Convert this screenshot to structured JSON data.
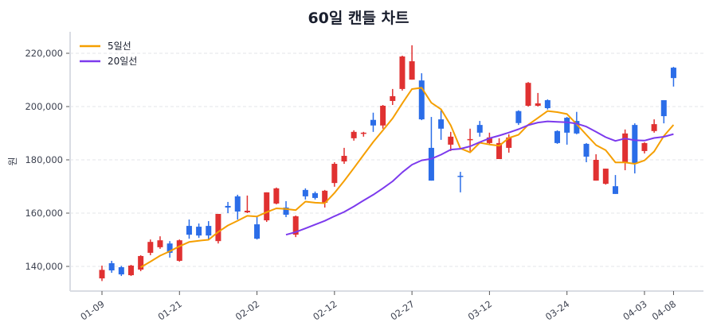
{
  "chart_data": {
    "type": "candlestick",
    "title": "60일 캔들 차트",
    "xlabel": "",
    "ylabel": "원",
    "ylim": [
      131000,
      228000
    ],
    "grid": true,
    "legend_position": "upper-left",
    "y_ticks": [
      140000,
      160000,
      180000,
      200000,
      220000
    ],
    "y_tick_labels": [
      "140,000",
      "160,000",
      "180,000",
      "200,000",
      "220,000"
    ],
    "x_ticks": [
      {
        "index": 0,
        "label": "01-09"
      },
      {
        "index": 8,
        "label": "01-21"
      },
      {
        "index": 16,
        "label": "02-02"
      },
      {
        "index": 24,
        "label": "02-12"
      },
      {
        "index": 32,
        "label": "02-27"
      },
      {
        "index": 40,
        "label": "03-12"
      },
      {
        "index": 48,
        "label": "03-24"
      },
      {
        "index": 56,
        "label": "04-03"
      },
      {
        "index": 59,
        "label": "04-08"
      }
    ],
    "colors": {
      "up": "#e03131",
      "down": "#2b6de8",
      "ma5": "#f59f00",
      "ma20": "#7c3aed",
      "grid": "#e3e5ea",
      "axis": "#d9dce3"
    },
    "legend": [
      {
        "name": "5일선",
        "color": "#f59f00",
        "window": 5
      },
      {
        "name": "20일선",
        "color": "#7c3aed",
        "window": 20
      }
    ],
    "ohlc": [
      [
        135500,
        140300,
        134500,
        138700
      ],
      [
        141200,
        142100,
        137600,
        138500
      ],
      [
        139700,
        140200,
        136400,
        137000
      ],
      [
        136700,
        140600,
        136400,
        140300
      ],
      [
        138800,
        144200,
        138200,
        143900
      ],
      [
        145100,
        150100,
        144200,
        149200
      ],
      [
        147200,
        151300,
        146600,
        149800
      ],
      [
        148600,
        149500,
        143300,
        145100
      ],
      [
        142100,
        150100,
        141800,
        149800
      ],
      [
        155200,
        157600,
        150400,
        151900
      ],
      [
        154900,
        156100,
        150700,
        151600
      ],
      [
        155200,
        157000,
        150100,
        151600
      ],
      [
        149500,
        159700,
        148600,
        159700
      ],
      [
        162700,
        164200,
        160000,
        162100
      ],
      [
        166300,
        166900,
        157600,
        160600
      ],
      [
        160300,
        166600,
        160000,
        160900
      ],
      [
        155800,
        158800,
        150100,
        150400
      ],
      [
        157300,
        167800,
        156700,
        167800
      ],
      [
        163600,
        169600,
        163300,
        169300
      ],
      [
        162100,
        164500,
        158500,
        159400
      ],
      [
        151900,
        159100,
        151000,
        158800
      ],
      [
        168700,
        169300,
        165100,
        166300
      ],
      [
        167500,
        168100,
        165100,
        165700
      ],
      [
        163900,
        168700,
        162100,
        168400
      ],
      [
        171300,
        179100,
        169900,
        178500
      ],
      [
        179400,
        184500,
        178500,
        181500
      ],
      [
        188100,
        191100,
        187200,
        190500
      ],
      [
        189900,
        190500,
        188700,
        190200
      ],
      [
        195000,
        197700,
        190500,
        192900
      ],
      [
        192900,
        200600,
        191700,
        200300
      ],
      [
        202100,
        206600,
        200600,
        203900
      ],
      [
        206600,
        219100,
        206000,
        218800
      ],
      [
        210100,
        223000,
        210100,
        217000
      ],
      [
        209800,
        212500,
        194900,
        195200
      ],
      [
        184500,
        196100,
        172200,
        172200
      ],
      [
        195200,
        198600,
        187500,
        191700
      ],
      [
        185700,
        190500,
        183300,
        188700
      ],
      [
        174000,
        175500,
        167800,
        173700
      ],
      [
        187500,
        191700,
        183300,
        187800
      ],
      [
        193100,
        194600,
        188700,
        190200
      ],
      [
        186300,
        190200,
        185700,
        188400
      ],
      [
        180300,
        188100,
        180300,
        186300
      ],
      [
        184500,
        189600,
        182700,
        188400
      ],
      [
        198300,
        198600,
        193100,
        193800
      ],
      [
        200300,
        209200,
        200000,
        208900
      ],
      [
        200300,
        205100,
        200000,
        201200
      ],
      [
        202400,
        202700,
        198900,
        199400
      ],
      [
        190800,
        191100,
        186000,
        186300
      ],
      [
        195800,
        196100,
        185700,
        190200
      ],
      [
        194600,
        198000,
        189600,
        189900
      ],
      [
        186000,
        186300,
        179100,
        181200
      ],
      [
        172200,
        182100,
        172200,
        180000
      ],
      [
        171000,
        176700,
        170700,
        176700
      ],
      [
        170100,
        174300,
        167200,
        167200
      ],
      [
        178800,
        191400,
        176100,
        189900
      ],
      [
        193100,
        193700,
        174900,
        178800
      ],
      [
        183300,
        186600,
        182400,
        186300
      ],
      [
        190800,
        195200,
        190200,
        193400
      ],
      [
        202400,
        202400,
        193700,
        196400
      ],
      [
        214600,
        214900,
        207500,
        210700
      ]
    ]
  }
}
